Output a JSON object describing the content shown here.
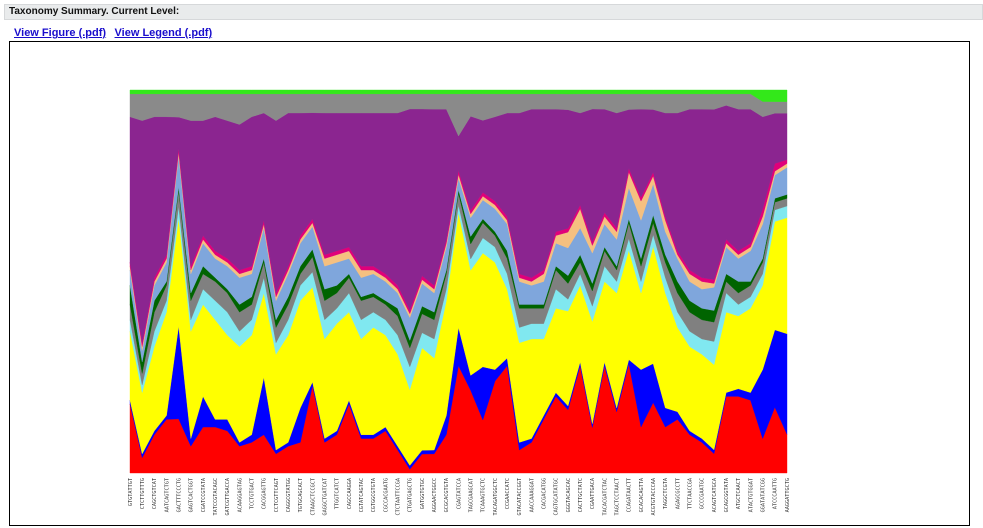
{
  "header": {
    "title": "Taxonomy Summary. Current Level:"
  },
  "links": {
    "figure": "View Figure (.pdf)",
    "legend": "View Legend (.pdf)"
  },
  "chart_data": {
    "type": "area",
    "stacked": "normalized",
    "ylim": [
      0,
      1
    ],
    "grid": false,
    "legend": "none",
    "categories": [
      "GTGTATTGT",
      "CTCTTGTTTG",
      "CAGCTGTCAT",
      "AATCAGTCTGT",
      "GACTTTCCCTG",
      "GAGTCACTGGT",
      "CGATCCGTATA",
      "TATCCGTACAGC",
      "GATCGTTGACCA",
      "ACAAGGAGTAG",
      "TCCTGTGACT",
      "CACGGAGTTG",
      "CCTCGTTCAGT",
      "CAGGCGTATGG",
      "TGTGCAGCACT",
      "CTAAGCTCCGCT",
      "GAGGCTGATCAT",
      "TTGGTCATCT",
      "CAGCCAAGGA",
      "CGTATCAGTAC",
      "CGTGGCGTGTA",
      "CGCCACGAATG",
      "CTCTAATTCCGA",
      "CTGATGAGCTG",
      "GATGGTGTGC",
      "AGGAACTGGCC",
      "GCGCACGTGTA",
      "CGAGTATCCA",
      "TAGCGAAGCAT",
      "TCAAAGTGCTC",
      "TACAGATGGCTC",
      "CCGAACCATC",
      "GTACATACCGGT",
      "AACCAAAGGAT",
      "CACGACATGG",
      "CAGTGCATATGC",
      "GGGTACAGCAC",
      "CACTTGCTATC",
      "CGAATTGACA",
      "TACACGATCTAC",
      "TAGCTCCTAACT",
      "CCAGATAACTT",
      "GCACACAGTTA",
      "ACGTGTACCCAA",
      "TAGGCTCGTA",
      "AGAGCGCCTT",
      "TTCTAACCGA",
      "GCCCGAATGC",
      "ACAGTCATGCA",
      "GCAGCGGTATA",
      "ATGCTCAACT",
      "ATACTGTGGAT",
      "GGATATATCGG",
      "ATCCCAATTG",
      "AAGGATTGCTG"
    ],
    "series": [
      {
        "color": "#ff0000",
        "values": [
          0.18,
          0.04,
          0.1,
          0.14,
          0.14,
          0.07,
          0.12,
          0.12,
          0.11,
          0.07,
          0.08,
          0.1,
          0.05,
          0.07,
          0.08,
          0.23,
          0.08,
          0.1,
          0.18,
          0.09,
          0.09,
          0.11,
          0.06,
          0.01,
          0.05,
          0.05,
          0.1,
          0.28,
          0.22,
          0.14,
          0.24,
          0.28,
          0.06,
          0.08,
          0.14,
          0.2,
          0.16,
          0.28,
          0.12,
          0.28,
          0.16,
          0.28,
          0.12,
          0.18,
          0.12,
          0.14,
          0.1,
          0.08,
          0.05,
          0.2,
          0.2,
          0.19,
          0.09,
          0.17,
          0.1
        ]
      },
      {
        "color": "#0000ff",
        "values": [
          0.01,
          0.01,
          0.01,
          0.01,
          0.24,
          0.02,
          0.08,
          0.02,
          0.03,
          0.01,
          0.02,
          0.15,
          0.01,
          0.01,
          0.09,
          0.01,
          0.01,
          0.01,
          0.01,
          0.01,
          0.01,
          0.01,
          0.01,
          0.01,
          0.01,
          0.01,
          0.05,
          0.1,
          0.04,
          0.14,
          0.03,
          0.02,
          0.02,
          0.01,
          0.01,
          0.01,
          0.01,
          0.01,
          0.01,
          0.01,
          0.01,
          0.01,
          0.15,
          0.1,
          0.05,
          0.02,
          0.01,
          0.01,
          0.01,
          0.01,
          0.02,
          0.02,
          0.18,
          0.2,
          0.26
        ]
      },
      {
        "color": "#ffff00",
        "values": [
          0.18,
          0.16,
          0.22,
          0.27,
          0.28,
          0.28,
          0.24,
          0.26,
          0.22,
          0.25,
          0.26,
          0.22,
          0.25,
          0.28,
          0.28,
          0.25,
          0.26,
          0.28,
          0.23,
          0.25,
          0.28,
          0.24,
          0.24,
          0.2,
          0.27,
          0.24,
          0.3,
          0.3,
          0.28,
          0.3,
          0.28,
          0.18,
          0.26,
          0.26,
          0.2,
          0.22,
          0.24,
          0.2,
          0.27,
          0.21,
          0.3,
          0.28,
          0.2,
          0.3,
          0.3,
          0.22,
          0.22,
          0.22,
          0.22,
          0.21,
          0.19,
          0.22,
          0.22,
          0.28,
          0.3
        ]
      },
      {
        "color": "#80e8f0",
        "values": [
          0.03,
          0.02,
          0.04,
          0.03,
          0.03,
          0.03,
          0.04,
          0.05,
          0.06,
          0.04,
          0.04,
          0.04,
          0.03,
          0.04,
          0.04,
          0.04,
          0.05,
          0.04,
          0.05,
          0.05,
          0.04,
          0.04,
          0.05,
          0.06,
          0.04,
          0.05,
          0.03,
          0.02,
          0.03,
          0.04,
          0.04,
          0.04,
          0.04,
          0.04,
          0.04,
          0.05,
          0.03,
          0.03,
          0.04,
          0.04,
          0.03,
          0.03,
          0.03,
          0.03,
          0.04,
          0.04,
          0.04,
          0.04,
          0.06,
          0.05,
          0.03,
          0.03,
          0.03,
          0.03,
          0.03
        ]
      },
      {
        "color": "#808080",
        "values": [
          0.04,
          0.03,
          0.05,
          0.04,
          0.04,
          0.05,
          0.04,
          0.05,
          0.05,
          0.05,
          0.04,
          0.04,
          0.04,
          0.04,
          0.03,
          0.04,
          0.05,
          0.04,
          0.04,
          0.05,
          0.04,
          0.04,
          0.05,
          0.05,
          0.05,
          0.05,
          0.04,
          0.03,
          0.04,
          0.04,
          0.03,
          0.04,
          0.05,
          0.04,
          0.04,
          0.05,
          0.04,
          0.03,
          0.04,
          0.04,
          0.03,
          0.04,
          0.04,
          0.03,
          0.04,
          0.05,
          0.05,
          0.05,
          0.05,
          0.03,
          0.03,
          0.03,
          0.03,
          0.02,
          0.02
        ]
      },
      {
        "color": "#006400",
        "values": [
          0.05,
          0.03,
          0.03,
          0.01,
          0.01,
          0.02,
          0.02,
          0.01,
          0.01,
          0.02,
          0.02,
          0.01,
          0.02,
          0.02,
          0.02,
          0.02,
          0.03,
          0.02,
          0.01,
          0.01,
          0.01,
          0.01,
          0.02,
          0.02,
          0.02,
          0.02,
          0.01,
          0.01,
          0.02,
          0.01,
          0.01,
          0.02,
          0.01,
          0.01,
          0.01,
          0.01,
          0.02,
          0.02,
          0.02,
          0.01,
          0.01,
          0.01,
          0.02,
          0.02,
          0.02,
          0.03,
          0.03,
          0.03,
          0.03,
          0.02,
          0.03,
          0.01,
          0.01,
          0.01,
          0.01
        ]
      },
      {
        "color": "#7fa6dc",
        "values": [
          0.04,
          0.03,
          0.04,
          0.05,
          0.08,
          0.05,
          0.06,
          0.05,
          0.06,
          0.07,
          0.06,
          0.08,
          0.05,
          0.06,
          0.06,
          0.06,
          0.06,
          0.06,
          0.04,
          0.05,
          0.05,
          0.05,
          0.04,
          0.06,
          0.06,
          0.05,
          0.06,
          0.03,
          0.05,
          0.05,
          0.06,
          0.07,
          0.06,
          0.05,
          0.06,
          0.06,
          0.07,
          0.07,
          0.08,
          0.06,
          0.07,
          0.08,
          0.1,
          0.08,
          0.06,
          0.06,
          0.05,
          0.05,
          0.06,
          0.07,
          0.06,
          0.08,
          0.09,
          0.06,
          0.07
        ]
      },
      {
        "color": "#f5c080",
        "values": [
          0.01,
          0.01,
          0.01,
          0.01,
          0.01,
          0.01,
          0.01,
          0.01,
          0.01,
          0.01,
          0.01,
          0.01,
          0.01,
          0.01,
          0.01,
          0.01,
          0.02,
          0.02,
          0.02,
          0.02,
          0.01,
          0.01,
          0.01,
          0.01,
          0.01,
          0.01,
          0.01,
          0.01,
          0.01,
          0.01,
          0.01,
          0.01,
          0.01,
          0.01,
          0.02,
          0.02,
          0.04,
          0.05,
          0.02,
          0.02,
          0.02,
          0.04,
          0.05,
          0.02,
          0.03,
          0.01,
          0.02,
          0.02,
          0.01,
          0.01,
          0.01,
          0.01,
          0.02,
          0.01,
          0.01
        ]
      },
      {
        "color": "#e0007a",
        "values": [
          0.01,
          0.01,
          0.01,
          0.01,
          0.01,
          0.01,
          0.01,
          0.01,
          0.01,
          0.01,
          0.01,
          0.01,
          0.01,
          0.01,
          0.01,
          0.01,
          0.01,
          0.01,
          0.01,
          0.01,
          0.01,
          0.01,
          0.01,
          0.01,
          0.01,
          0.01,
          0.01,
          0.01,
          0.01,
          0.01,
          0.01,
          0.01,
          0.01,
          0.01,
          0.01,
          0.01,
          0.01,
          0.01,
          0.01,
          0.01,
          0.01,
          0.01,
          0.01,
          0.01,
          0.01,
          0.01,
          0.01,
          0.01,
          0.01,
          0.01,
          0.01,
          0.01,
          0.02,
          0.02,
          0.01
        ]
      },
      {
        "color": "#8b2590",
        "values": [
          0.38,
          0.58,
          0.42,
          0.36,
          0.08,
          0.38,
          0.3,
          0.35,
          0.36,
          0.38,
          0.39,
          0.28,
          0.45,
          0.4,
          0.32,
          0.28,
          0.37,
          0.36,
          0.35,
          0.4,
          0.4,
          0.42,
          0.45,
          0.53,
          0.44,
          0.46,
          0.34,
          0.09,
          0.25,
          0.19,
          0.22,
          0.27,
          0.42,
          0.44,
          0.42,
          0.32,
          0.3,
          0.24,
          0.35,
          0.27,
          0.3,
          0.15,
          0.23,
          0.16,
          0.27,
          0.36,
          0.42,
          0.44,
          0.44,
          0.35,
          0.37,
          0.35,
          0.24,
          0.13,
          0.12
        ]
      },
      {
        "color": "#8a8a8a",
        "values": [
          0.06,
          0.07,
          0.06,
          0.06,
          0.06,
          0.07,
          0.07,
          0.06,
          0.07,
          0.08,
          0.06,
          0.05,
          0.07,
          0.05,
          0.05,
          0.05,
          0.05,
          0.05,
          0.05,
          0.05,
          0.05,
          0.05,
          0.05,
          0.04,
          0.04,
          0.04,
          0.04,
          0.11,
          0.06,
          0.07,
          0.06,
          0.05,
          0.05,
          0.04,
          0.04,
          0.04,
          0.04,
          0.05,
          0.04,
          0.04,
          0.05,
          0.04,
          0.04,
          0.04,
          0.05,
          0.05,
          0.04,
          0.04,
          0.04,
          0.03,
          0.04,
          0.04,
          0.04,
          0.03,
          0.03
        ]
      },
      {
        "color": "#33e81a",
        "values": [
          0.01,
          0.01,
          0.01,
          0.01,
          0.01,
          0.01,
          0.01,
          0.01,
          0.01,
          0.01,
          0.01,
          0.01,
          0.01,
          0.01,
          0.01,
          0.01,
          0.01,
          0.01,
          0.01,
          0.01,
          0.01,
          0.01,
          0.01,
          0.01,
          0.01,
          0.01,
          0.01,
          0.01,
          0.01,
          0.01,
          0.01,
          0.01,
          0.01,
          0.01,
          0.01,
          0.01,
          0.01,
          0.01,
          0.01,
          0.01,
          0.01,
          0.01,
          0.01,
          0.01,
          0.01,
          0.01,
          0.01,
          0.01,
          0.01,
          0.01,
          0.01,
          0.01,
          0.03,
          0.03,
          0.03
        ]
      }
    ]
  }
}
